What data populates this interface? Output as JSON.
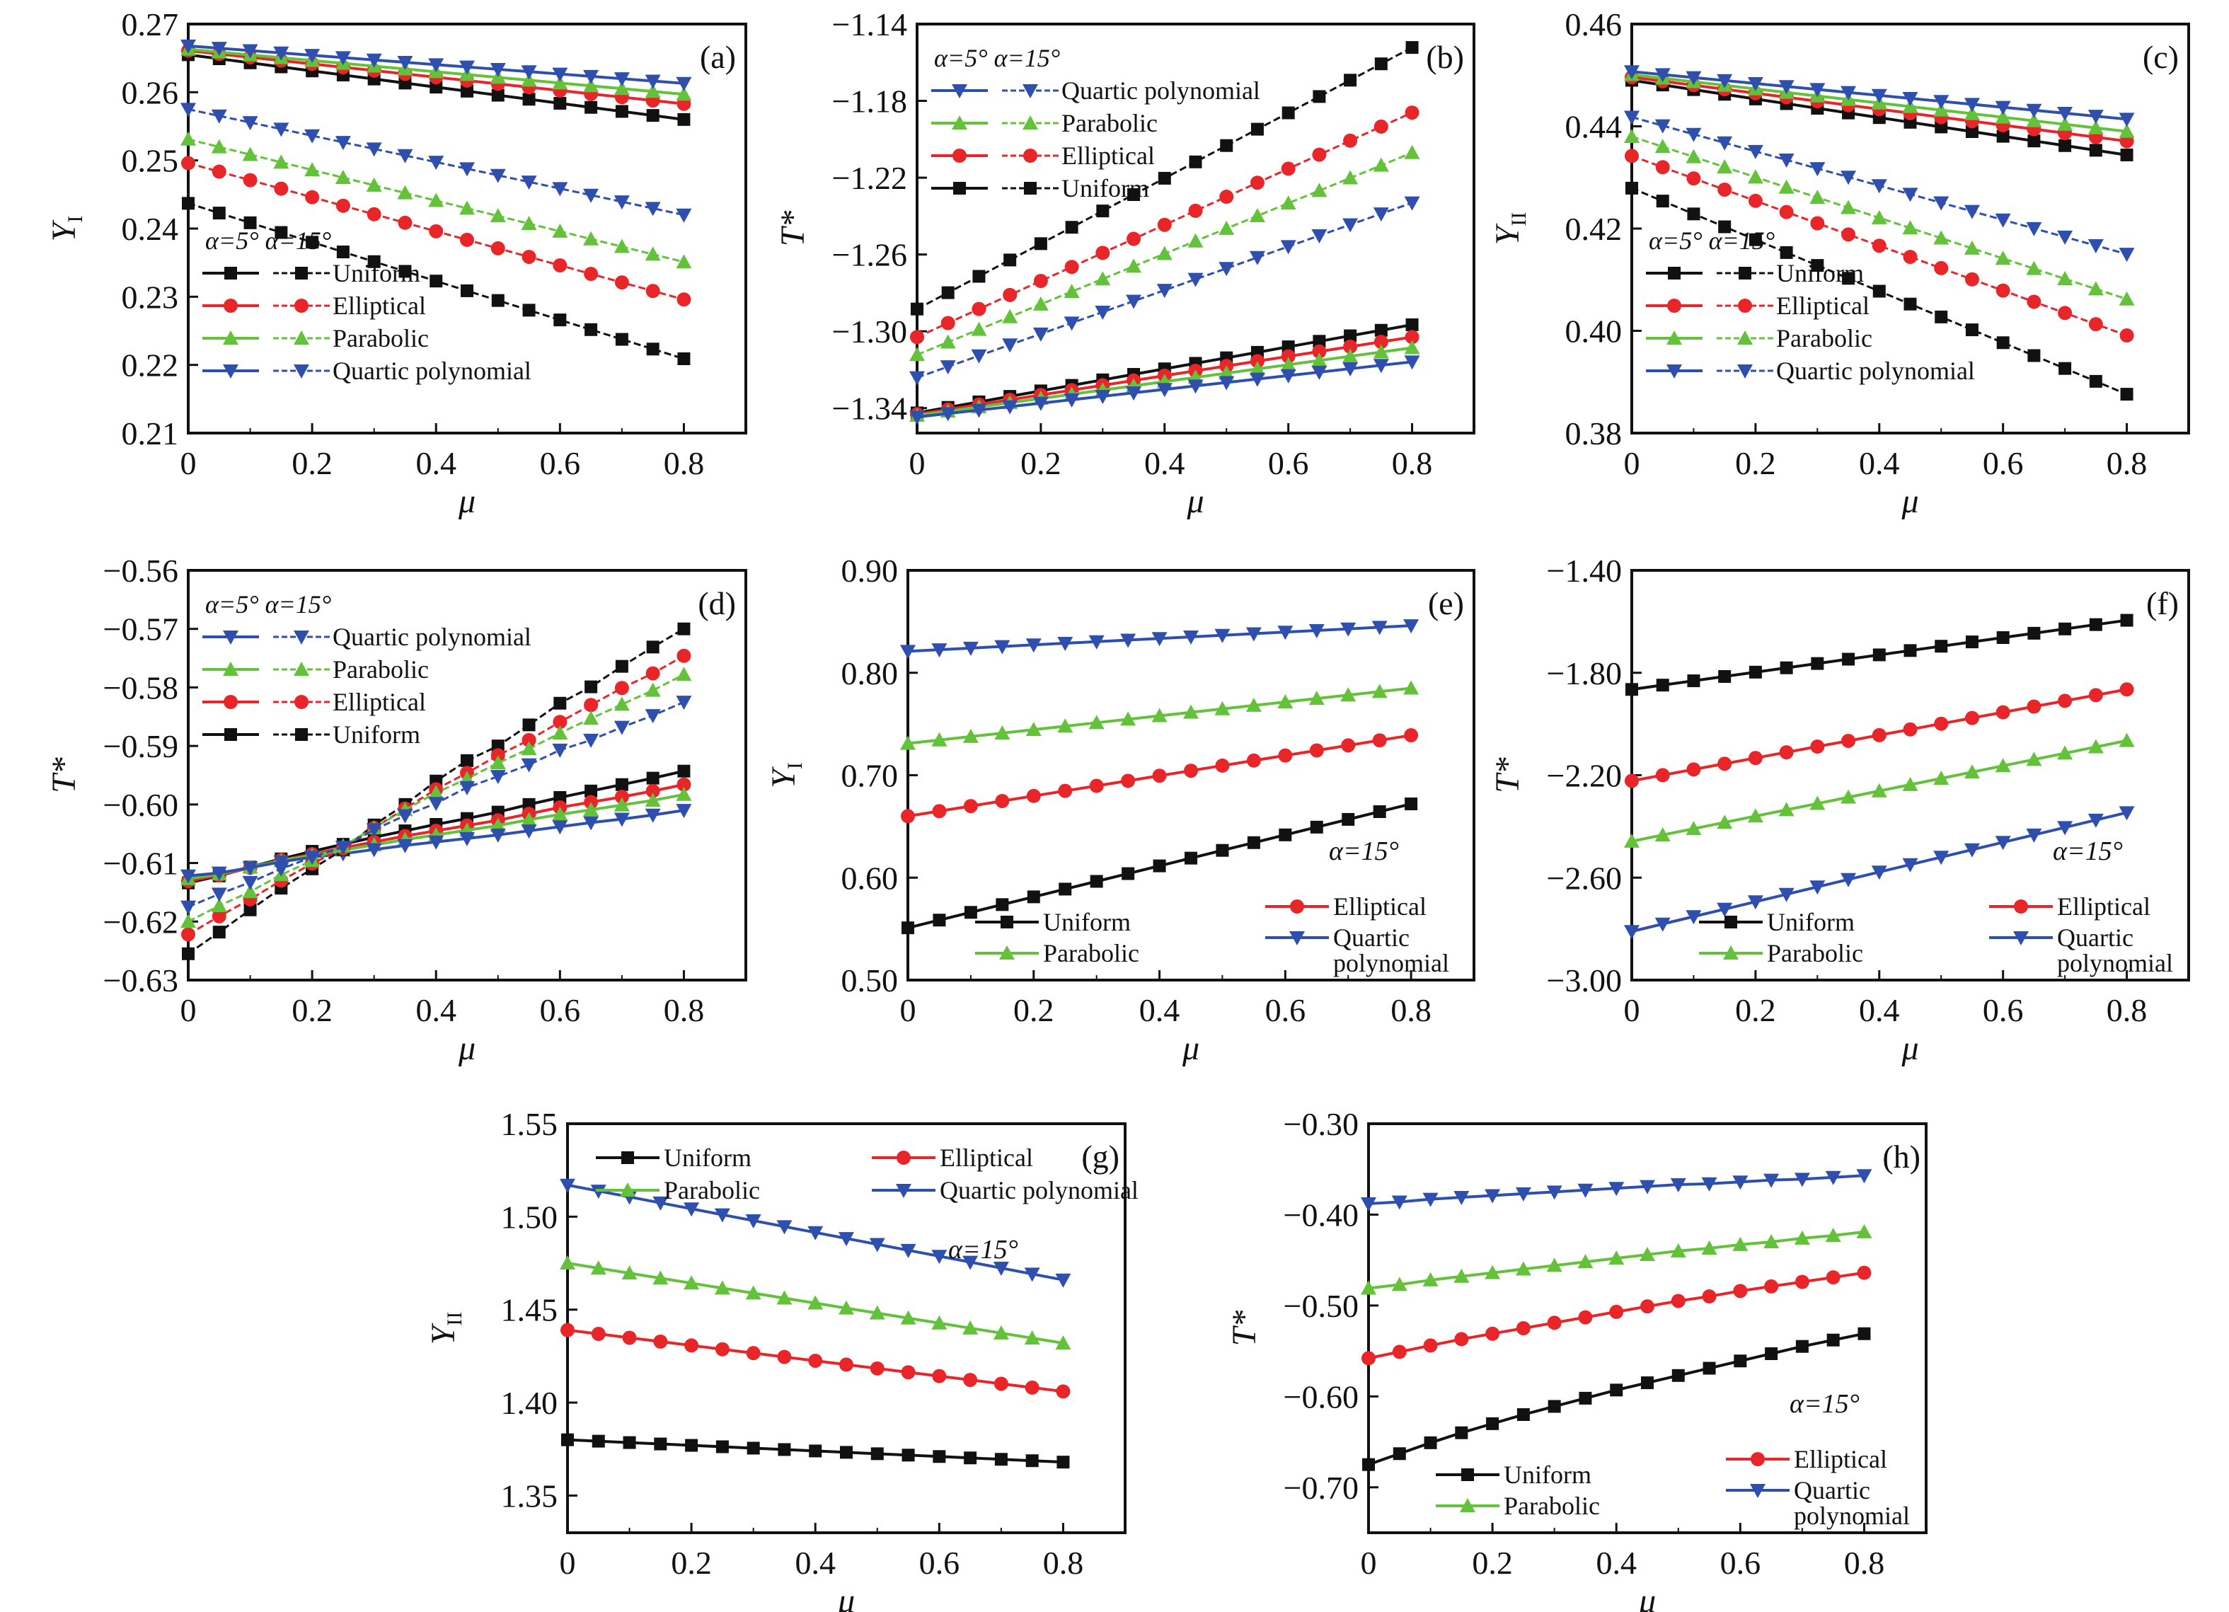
{
  "figure": {
    "x_label": "μ",
    "x_ticks": [
      "0",
      "0.2",
      "0.4",
      "0.6",
      "0.8"
    ]
  },
  "colors": {
    "Uniform": "#111111",
    "Elliptical": "#e8262a",
    "Parabolic": "#63c23a",
    "Quartic polynomial": "#2f4fae"
  },
  "chart_data": [
    {
      "id": "a",
      "panel_label": "(a)",
      "type": "line",
      "xlabel": "μ",
      "ylabel": "Y",
      "ylabel_sub": "I",
      "xlim": [
        0,
        0.9
      ],
      "ylim": [
        0.21,
        0.27
      ],
      "y_ticks": [
        "0.21",
        "0.22",
        "0.23",
        "0.24",
        "0.25",
        "0.26",
        "0.27"
      ],
      "x": [
        0,
        0.05,
        0.1,
        0.15,
        0.2,
        0.25,
        0.3,
        0.35,
        0.4,
        0.45,
        0.5,
        0.55,
        0.6,
        0.65,
        0.7,
        0.75,
        0.8
      ],
      "legend_header": "α=5° α=15°",
      "legend_order": [
        "Uniform",
        "Elliptical",
        "Parabolic",
        "Quartic polynomial"
      ],
      "legend_position": "bottom-left",
      "series": [
        {
          "name": "Uniform",
          "alpha": "5°",
          "style": "solid",
          "start": 0.2655,
          "end": 0.256
        },
        {
          "name": "Elliptical",
          "alpha": "5°",
          "style": "solid",
          "start": 0.2661,
          "end": 0.2583
        },
        {
          "name": "Parabolic",
          "alpha": "5°",
          "style": "solid",
          "start": 0.2663,
          "end": 0.2597
        },
        {
          "name": "Quartic polynomial",
          "alpha": "5°",
          "style": "solid",
          "start": 0.2668,
          "end": 0.2613
        },
        {
          "name": "Uniform",
          "alpha": "15°",
          "style": "dashed",
          "start": 0.2437,
          "end": 0.2209
        },
        {
          "name": "Elliptical",
          "alpha": "15°",
          "style": "dashed",
          "start": 0.2496,
          "end": 0.2296
        },
        {
          "name": "Parabolic",
          "alpha": "15°",
          "style": "dashed",
          "start": 0.2531,
          "end": 0.2351
        },
        {
          "name": "Quartic polynomial",
          "alpha": "15°",
          "style": "dashed",
          "start": 0.2575,
          "end": 0.242
        }
      ]
    },
    {
      "id": "b",
      "panel_label": "(b)",
      "type": "line",
      "xlabel": "μ",
      "ylabel": "T*",
      "ylabel_sub": "",
      "xlim": [
        0,
        0.9
      ],
      "ylim": [
        -1.353,
        -1.14
      ],
      "y_ticks": [
        "−1.34",
        "−1.30",
        "−1.26",
        "−1.22",
        "−1.18",
        "−1.14"
      ],
      "y_tick_values": [
        -1.34,
        -1.3,
        -1.26,
        -1.22,
        -1.18,
        -1.14
      ],
      "x": [
        0,
        0.05,
        0.1,
        0.15,
        0.2,
        0.25,
        0.3,
        0.35,
        0.4,
        0.45,
        0.5,
        0.55,
        0.6,
        0.65,
        0.7,
        0.75,
        0.8
      ],
      "legend_header": "α=5° α=15°",
      "legend_order": [
        "Quartic polynomial",
        "Parabolic",
        "Elliptical",
        "Uniform"
      ],
      "legend_position": "top-left",
      "series": [
        {
          "name": "Uniform",
          "alpha": "5°",
          "style": "solid",
          "start": -1.3425,
          "end": -1.2966
        },
        {
          "name": "Elliptical",
          "alpha": "5°",
          "style": "solid",
          "start": -1.3432,
          "end": -1.303
        },
        {
          "name": "Parabolic",
          "alpha": "5°",
          "style": "solid",
          "start": -1.3438,
          "end": -1.3086
        },
        {
          "name": "Quartic polynomial",
          "alpha": "5°",
          "style": "solid",
          "start": -1.3446,
          "end": -1.3159
        },
        {
          "name": "Uniform",
          "alpha": "15°",
          "style": "dashed",
          "start": -1.2884,
          "end": -1.1522
        },
        {
          "name": "Elliptical",
          "alpha": "15°",
          "style": "dashed",
          "start": -1.303,
          "end": -1.1861
        },
        {
          "name": "Parabolic",
          "alpha": "15°",
          "style": "dashed",
          "start": -1.3122,
          "end": -1.207
        },
        {
          "name": "Quartic polynomial",
          "alpha": "15°",
          "style": "dashed",
          "start": -1.3241,
          "end": -1.2331
        }
      ]
    },
    {
      "id": "c",
      "panel_label": "(c)",
      "type": "line",
      "xlabel": "μ",
      "ylabel": "Y",
      "ylabel_sub": "II",
      "xlim": [
        0,
        0.9
      ],
      "ylim": [
        0.38,
        0.46
      ],
      "y_ticks": [
        "0.38",
        "0.40",
        "0.42",
        "0.44",
        "0.46"
      ],
      "x": [
        0,
        0.05,
        0.1,
        0.15,
        0.2,
        0.25,
        0.3,
        0.35,
        0.4,
        0.45,
        0.5,
        0.55,
        0.6,
        0.65,
        0.7,
        0.75,
        0.8
      ],
      "legend_header": "α=5° α=15°",
      "legend_order": [
        "Uniform",
        "Elliptical",
        "Parabolic",
        "Quartic polynomial"
      ],
      "legend_position": "bottom-left",
      "series": [
        {
          "name": "Uniform",
          "alpha": "5°",
          "style": "solid",
          "start": 0.449,
          "end": 0.4344
        },
        {
          "name": "Elliptical",
          "alpha": "5°",
          "style": "solid",
          "start": 0.4496,
          "end": 0.4371
        },
        {
          "name": "Parabolic",
          "alpha": "5°",
          "style": "solid",
          "start": 0.4501,
          "end": 0.439
        },
        {
          "name": "Quartic polynomial",
          "alpha": "5°",
          "style": "solid",
          "start": 0.4507,
          "end": 0.4414
        },
        {
          "name": "Uniform",
          "alpha": "15°",
          "style": "dashed",
          "start": 0.4279,
          "end": 0.3876
        },
        {
          "name": "Elliptical",
          "alpha": "15°",
          "style": "dashed",
          "start": 0.4342,
          "end": 0.3991
        },
        {
          "name": "Parabolic",
          "alpha": "15°",
          "style": "dashed",
          "start": 0.438,
          "end": 0.4062
        },
        {
          "name": "Quartic polynomial",
          "alpha": "15°",
          "style": "dashed",
          "start": 0.4418,
          "end": 0.415
        }
      ]
    },
    {
      "id": "d",
      "panel_label": "(d)",
      "type": "line",
      "xlabel": "μ",
      "ylabel": "T*",
      "ylabel_sub": "",
      "xlim": [
        0,
        0.9
      ],
      "ylim": [
        -0.63,
        -0.56
      ],
      "y_ticks": [
        "−0.63",
        "−0.62",
        "−0.61",
        "−0.60",
        "−0.59",
        "−0.58",
        "−0.57",
        "−0.56"
      ],
      "y_tick_values": [
        -0.63,
        -0.62,
        -0.61,
        -0.6,
        -0.59,
        -0.58,
        -0.57,
        -0.56
      ],
      "x": [
        0,
        0.05,
        0.1,
        0.15,
        0.2,
        0.25,
        0.3,
        0.35,
        0.4,
        0.45,
        0.5,
        0.55,
        0.6,
        0.65,
        0.7,
        0.75,
        0.8
      ],
      "legend_header": "α=5° α=15°",
      "legend_order": [
        "Quartic polynomial",
        "Parabolic",
        "Elliptical",
        "Uniform"
      ],
      "legend_position": "top-left",
      "series": [
        {
          "name": "Uniform",
          "alpha": "5°",
          "style": "solid",
          "values": [
            -0.6134,
            -0.6122,
            -0.6107,
            -0.6093,
            -0.608,
            -0.6068,
            -0.6056,
            -0.6045,
            -0.6034,
            -0.6024,
            -0.6013,
            -0.6,
            -0.5988,
            -0.5977,
            -0.5966,
            -0.5955,
            -0.5943
          ]
        },
        {
          "name": "Elliptical",
          "alpha": "5°",
          "style": "solid",
          "values": [
            -0.6131,
            -0.6121,
            -0.6108,
            -0.6095,
            -0.6085,
            -0.6074,
            -0.6064,
            -0.6054,
            -0.6045,
            -0.6036,
            -0.6027,
            -0.6016,
            -0.6005,
            -0.5996,
            -0.5987,
            -0.5977,
            -0.5966
          ]
        },
        {
          "name": "Parabolic",
          "alpha": "5°",
          "style": "solid",
          "values": [
            -0.6127,
            -0.6119,
            -0.6107,
            -0.6096,
            -0.6087,
            -0.6078,
            -0.6069,
            -0.606,
            -0.6052,
            -0.6044,
            -0.6036,
            -0.6026,
            -0.6017,
            -0.6009,
            -0.6001,
            -0.5993,
            -0.5983
          ]
        },
        {
          "name": "Quartic polynomial",
          "alpha": "5°",
          "style": "solid",
          "values": [
            -0.6122,
            -0.6117,
            -0.6108,
            -0.6098,
            -0.609,
            -0.6084,
            -0.6077,
            -0.607,
            -0.6064,
            -0.6058,
            -0.6052,
            -0.6045,
            -0.6038,
            -0.6031,
            -0.6025,
            -0.6018,
            -0.601
          ]
        },
        {
          "name": "Uniform",
          "alpha": "15°",
          "style": "dashed",
          "values": [
            -0.6255,
            -0.6218,
            -0.618,
            -0.6143,
            -0.611,
            -0.6077,
            -0.6035,
            -0.6,
            -0.596,
            -0.5925,
            -0.59,
            -0.5864,
            -0.5827,
            -0.5799,
            -0.5764,
            -0.5731,
            -0.57
          ]
        },
        {
          "name": "Elliptical",
          "alpha": "15°",
          "style": "dashed",
          "values": [
            -0.6222,
            -0.6191,
            -0.6162,
            -0.613,
            -0.6101,
            -0.6075,
            -0.604,
            -0.6007,
            -0.5974,
            -0.5946,
            -0.5916,
            -0.589,
            -0.5859,
            -0.583,
            -0.5801,
            -0.5776,
            -0.5746
          ]
        },
        {
          "name": "Parabolic",
          "alpha": "15°",
          "style": "dashed",
          "values": [
            -0.62,
            -0.6173,
            -0.6149,
            -0.612,
            -0.6096,
            -0.6071,
            -0.604,
            -0.6009,
            -0.598,
            -0.5956,
            -0.5929,
            -0.5905,
            -0.5878,
            -0.5853,
            -0.5829,
            -0.5805,
            -0.5778
          ]
        },
        {
          "name": "Quartic polynomial",
          "alpha": "15°",
          "style": "dashed",
          "values": [
            -0.6175,
            -0.6153,
            -0.6133,
            -0.611,
            -0.609,
            -0.6073,
            -0.6043,
            -0.6019,
            -0.5998,
            -0.5971,
            -0.5952,
            -0.5932,
            -0.5907,
            -0.589,
            -0.5868,
            -0.5848,
            -0.5825
          ]
        }
      ]
    },
    {
      "id": "e",
      "panel_label": "(e)",
      "type": "line",
      "xlabel": "μ",
      "ylabel": "Y",
      "ylabel_sub": "I",
      "xlim": [
        0,
        0.9
      ],
      "ylim": [
        0.5,
        0.9
      ],
      "y_ticks": [
        "0.50",
        "0.60",
        "0.70",
        "0.80",
        "0.90"
      ],
      "x": [
        0,
        0.05,
        0.1,
        0.15,
        0.2,
        0.25,
        0.3,
        0.35,
        0.4,
        0.45,
        0.5,
        0.55,
        0.6,
        0.65,
        0.7,
        0.75,
        0.8
      ],
      "annotation": "α=15°",
      "legend_order": [
        "Uniform",
        "Parabolic",
        "Elliptical",
        "Quartic polynomial"
      ],
      "legend_position": "bottom-right",
      "series": [
        {
          "name": "Uniform",
          "alpha": "15°",
          "style": "solid",
          "start": 0.551,
          "end": 0.672
        },
        {
          "name": "Elliptical",
          "alpha": "15°",
          "style": "solid",
          "start": 0.66,
          "end": 0.739
        },
        {
          "name": "Parabolic",
          "alpha": "15°",
          "style": "solid",
          "start": 0.731,
          "end": 0.785
        },
        {
          "name": "Quartic polynomial",
          "alpha": "15°",
          "style": "solid",
          "start": 0.821,
          "end": 0.846
        }
      ]
    },
    {
      "id": "f",
      "panel_label": "(f)",
      "type": "line",
      "xlabel": "μ",
      "ylabel": "T*",
      "ylabel_sub": "",
      "xlim": [
        0,
        0.9
      ],
      "ylim": [
        -3.0,
        -1.4
      ],
      "y_ticks": [
        "−3.00",
        "−2.60",
        "−2.20",
        "−1.80",
        "−1.40"
      ],
      "y_tick_values": [
        -3.0,
        -2.6,
        -2.2,
        -1.8,
        -1.4
      ],
      "x": [
        0,
        0.05,
        0.1,
        0.15,
        0.2,
        0.25,
        0.3,
        0.35,
        0.4,
        0.45,
        0.5,
        0.55,
        0.6,
        0.65,
        0.7,
        0.75,
        0.8
      ],
      "annotation": "α=15°",
      "legend_order": [
        "Uniform",
        "Parabolic",
        "Elliptical",
        "Quartic polynomial"
      ],
      "legend_position": "bottom-right",
      "series": [
        {
          "name": "Uniform",
          "alpha": "15°",
          "style": "solid",
          "start": -1.865,
          "end": -1.595
        },
        {
          "name": "Elliptical",
          "alpha": "15°",
          "style": "solid",
          "start": -2.222,
          "end": -1.865
        },
        {
          "name": "Parabolic",
          "alpha": "15°",
          "style": "solid",
          "start": -2.458,
          "end": -2.065
        },
        {
          "name": "Quartic polynomial",
          "alpha": "15°",
          "style": "solid",
          "start": -2.81,
          "end": -2.346
        }
      ]
    },
    {
      "id": "g",
      "panel_label": "(g)",
      "type": "line",
      "xlabel": "μ",
      "ylabel": "Y",
      "ylabel_sub": "II",
      "xlim": [
        0,
        0.9
      ],
      "ylim": [
        1.33,
        1.55
      ],
      "y_ticks": [
        "1.35",
        "1.40",
        "1.45",
        "1.50",
        "1.55"
      ],
      "y_tick_values": [
        1.35,
        1.4,
        1.45,
        1.5,
        1.55
      ],
      "x": [
        0,
        0.05,
        0.1,
        0.15,
        0.2,
        0.25,
        0.3,
        0.35,
        0.4,
        0.45,
        0.5,
        0.55,
        0.6,
        0.65,
        0.7,
        0.75,
        0.8
      ],
      "annotation": "α=15°",
      "legend_order": [
        "Uniform",
        "Elliptical",
        "Parabolic",
        "Quartic polynomial"
      ],
      "legend_position": "top",
      "series": [
        {
          "name": "Uniform",
          "alpha": "15°",
          "style": "solid",
          "start": 1.38,
          "end": 1.368
        },
        {
          "name": "Elliptical",
          "alpha": "15°",
          "style": "solid",
          "start": 1.439,
          "end": 1.406
        },
        {
          "name": "Parabolic",
          "alpha": "15°",
          "style": "solid",
          "start": 1.475,
          "end": 1.432
        },
        {
          "name": "Quartic polynomial",
          "alpha": "15°",
          "style": "solid",
          "start": 1.517,
          "end": 1.466
        }
      ]
    },
    {
      "id": "h",
      "panel_label": "(h)",
      "type": "line",
      "xlabel": "μ",
      "ylabel": "T*",
      "ylabel_sub": "",
      "xlim": [
        0,
        0.9
      ],
      "ylim": [
        -0.75,
        -0.3
      ],
      "y_ticks": [
        "−0.70",
        "−0.60",
        "−0.50",
        "−0.40",
        "−0.30"
      ],
      "y_tick_values": [
        -0.7,
        -0.6,
        -0.5,
        -0.4,
        -0.3
      ],
      "x": [
        0,
        0.05,
        0.1,
        0.15,
        0.2,
        0.25,
        0.3,
        0.35,
        0.4,
        0.45,
        0.5,
        0.55,
        0.6,
        0.65,
        0.7,
        0.75,
        0.8
      ],
      "annotation": "α=15°",
      "legend_order": [
        "Uniform",
        "Parabolic",
        "Elliptical",
        "Quartic polynomial"
      ],
      "legend_position": "bottom-right",
      "series": [
        {
          "name": "Uniform",
          "alpha": "15°",
          "style": "solid",
          "values": [
            -0.675,
            -0.663,
            -0.651,
            -0.64,
            -0.63,
            -0.62,
            -0.611,
            -0.602,
            -0.593,
            -0.585,
            -0.577,
            -0.569,
            -0.561,
            -0.553,
            -0.545,
            -0.538,
            -0.531
          ]
        },
        {
          "name": "Elliptical",
          "alpha": "15°",
          "style": "solid",
          "values": [
            -0.558,
            -0.551,
            -0.544,
            -0.537,
            -0.531,
            -0.525,
            -0.519,
            -0.513,
            -0.507,
            -0.501,
            -0.495,
            -0.49,
            -0.484,
            -0.479,
            -0.474,
            -0.469,
            -0.464
          ]
        },
        {
          "name": "Parabolic",
          "alpha": "15°",
          "style": "solid",
          "values": [
            -0.481,
            -0.477,
            -0.472,
            -0.468,
            -0.464,
            -0.46,
            -0.456,
            -0.452,
            -0.448,
            -0.444,
            -0.44,
            -0.437,
            -0.433,
            -0.43,
            -0.426,
            -0.423,
            -0.419
          ]
        },
        {
          "name": "Quartic polynomial",
          "alpha": "15°",
          "style": "solid",
          "values": [
            -0.388,
            -0.386,
            -0.383,
            -0.381,
            -0.379,
            -0.377,
            -0.375,
            -0.373,
            -0.371,
            -0.369,
            -0.367,
            -0.366,
            -0.364,
            -0.362,
            -0.361,
            -0.359,
            -0.357
          ]
        }
      ]
    }
  ]
}
